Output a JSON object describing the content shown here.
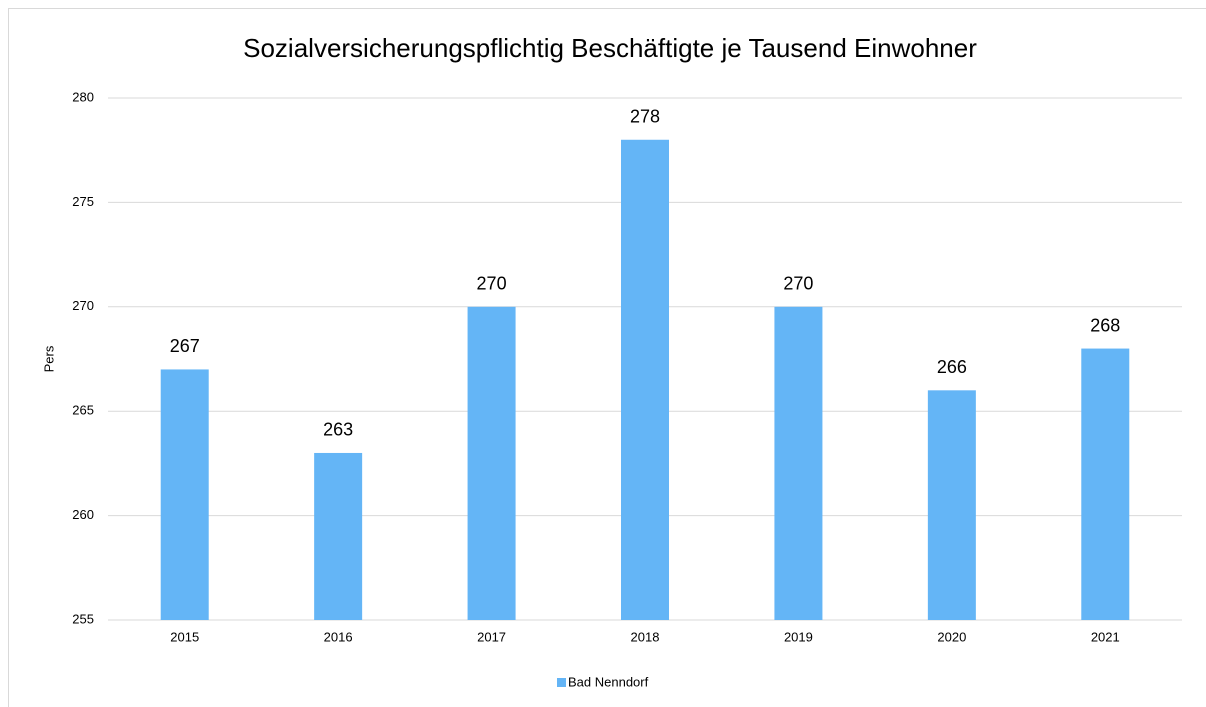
{
  "chart_data": {
    "type": "bar",
    "title": "Sozialversicherungspflichtig Beschäftigte je Tausend Einwohner",
    "y_label": "Pers",
    "categories": [
      "2015",
      "2016",
      "2017",
      "2018",
      "2019",
      "2020",
      "2021"
    ],
    "series": [
      {
        "name": "Bad Nenndorf",
        "color": "#64b5f6",
        "values": [
          267,
          263,
          270,
          278,
          270,
          266,
          268
        ]
      }
    ],
    "ylim": [
      255,
      280
    ],
    "yticks": [
      255,
      260,
      265,
      270,
      275,
      280
    ],
    "grid": true,
    "data_labels": true,
    "legend": "bottom"
  }
}
